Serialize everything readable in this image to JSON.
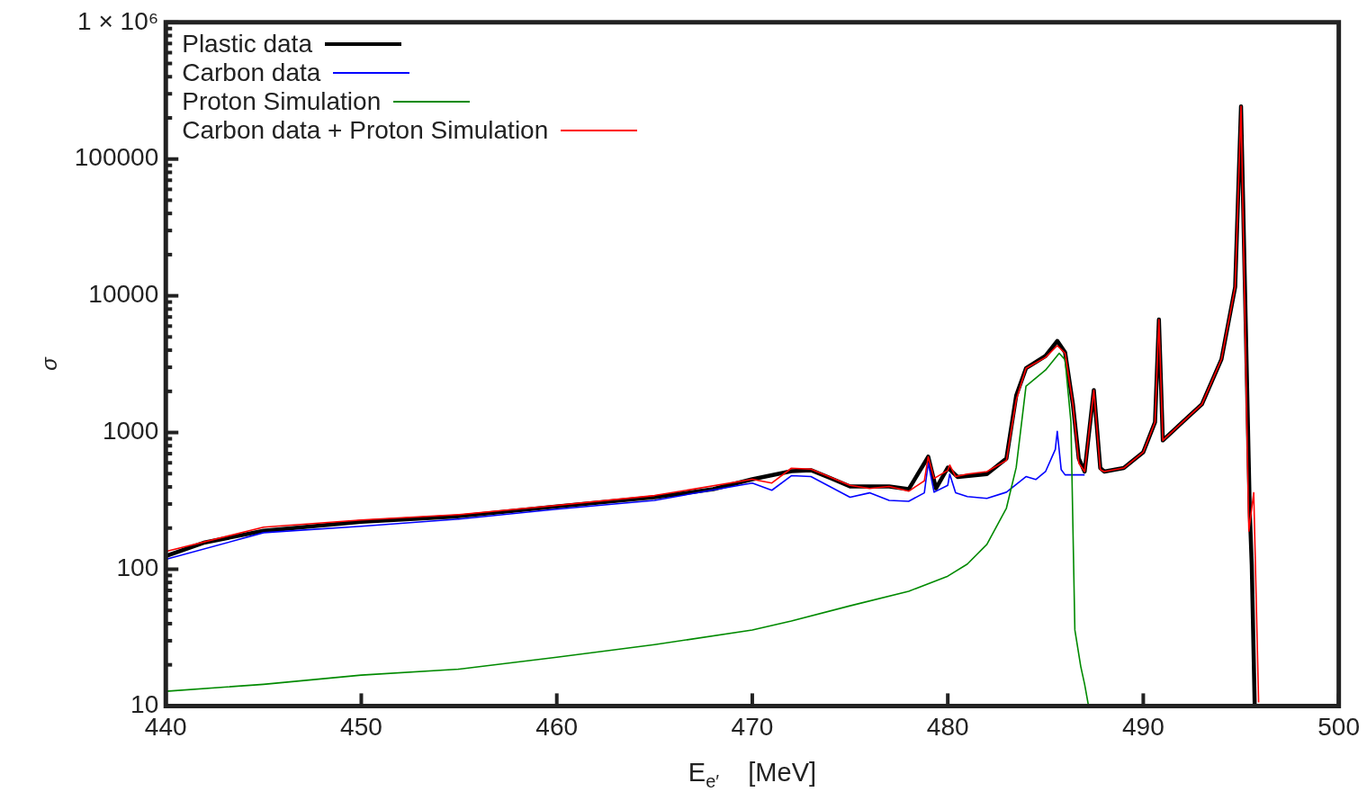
{
  "chart_data": {
    "type": "line",
    "xlabel": "E$_{e′}$    [MeV]",
    "ylabel": "σ",
    "log": "y",
    "grid": false,
    "legend": "top left",
    "marker": "none",
    "xlim": [
      440,
      500
    ],
    "xticks": [
      440,
      450,
      460,
      470,
      480,
      490,
      500
    ],
    "ylim": [
      10,
      1000000
    ],
    "yticks": [
      10,
      {
        "value": 20,
        "label": null
      },
      {
        "value": 30,
        "label": null
      },
      {
        "value": 40,
        "label": null
      },
      {
        "value": 50,
        "label": null
      },
      {
        "value": 60,
        "label": null
      },
      {
        "value": 70,
        "label": null
      },
      {
        "value": 80,
        "label": null
      },
      {
        "value": 90,
        "label": null
      },
      100,
      {
        "value": 200,
        "label": null
      },
      {
        "value": 300,
        "label": null
      },
      {
        "value": 400,
        "label": null
      },
      {
        "value": 500,
        "label": null
      },
      {
        "value": 600,
        "label": null
      },
      {
        "value": 700,
        "label": null
      },
      {
        "value": 800,
        "label": null
      },
      {
        "value": 900,
        "label": null
      },
      1000,
      {
        "value": 2000,
        "label": null
      },
      {
        "value": 3000,
        "label": null
      },
      {
        "value": 4000,
        "label": null
      },
      {
        "value": 5000,
        "label": null
      },
      {
        "value": 6000,
        "label": null
      },
      {
        "value": 7000,
        "label": null
      },
      {
        "value": 8000,
        "label": null
      },
      {
        "value": 9000,
        "label": null
      },
      10000,
      {
        "value": 20000,
        "label": null
      },
      {
        "value": 30000,
        "label": null
      },
      {
        "value": 40000,
        "label": null
      },
      {
        "value": 50000,
        "label": null
      },
      {
        "value": 60000,
        "label": null
      },
      {
        "value": 70000,
        "label": null
      },
      {
        "value": 80000,
        "label": null
      },
      {
        "value": 90000,
        "label": null
      },
      100000,
      {
        "value": 200000,
        "label": null
      },
      {
        "value": 300000,
        "label": null
      },
      {
        "value": 400000,
        "label": null
      },
      {
        "value": 500000,
        "label": null
      },
      {
        "value": 600000,
        "label": null
      },
      {
        "value": 700000,
        "label": null
      },
      {
        "value": 800000,
        "label": null
      },
      {
        "value": 900000,
        "label": null
      },
      {
        "value": 1000000,
        "label": "1 × 10⁶"
      }
    ],
    "series": [
      {
        "name": "Plastic data",
        "color": "#000000",
        "x": [
          440,
          442,
          445,
          450,
          455,
          460,
          465,
          468,
          470,
          472,
          473,
          474,
          475,
          477,
          478,
          479,
          479.4,
          480,
          480.5,
          482,
          483,
          483.5,
          484,
          485,
          485.6,
          486,
          486.4,
          486.7,
          487,
          487.47,
          487.8,
          488,
          489,
          490,
          490.6,
          490.8,
          491,
          492,
          493,
          494,
          494.7,
          495,
          495.45,
          495.55,
          495.7
        ],
        "values": [
          125,
          157,
          191,
          222,
          244,
          288,
          336,
          385,
          455,
          521,
          530,
          464,
          403,
          403,
          385,
          665,
          390,
          554,
          473,
          496,
          646,
          1860,
          2950,
          3630,
          4670,
          3860,
          1610,
          646,
          518,
          2040,
          550,
          518,
          550,
          718,
          1190,
          6710,
          875,
          1190,
          1610,
          3440,
          11600,
          243000,
          259,
          107,
          10
        ]
      },
      {
        "name": "Carbon data",
        "color": "#0000ff",
        "x": [
          440,
          445,
          450,
          455,
          460,
          465,
          470,
          471,
          472,
          473,
          475,
          476,
          477,
          478,
          478.8,
          479,
          479.3,
          480,
          480.1,
          480.4,
          481,
          482,
          483,
          484,
          484.5,
          485,
          485.5,
          485.6,
          485.8,
          486,
          487
        ],
        "values": [
          118,
          185,
          206,
          233,
          275,
          319,
          427,
          378,
          483,
          476,
          336,
          362,
          319,
          314,
          362,
          598,
          366,
          411,
          497,
          362,
          340,
          330,
          366,
          476,
          453,
          518,
          752,
          1020,
          536,
          490,
          490
        ]
      },
      {
        "name": "Proton Simulation",
        "color": "#008a00",
        "x": [
          440,
          445,
          450,
          455,
          460,
          465,
          470,
          472,
          475,
          478,
          480,
          481,
          482,
          483,
          483.5,
          484,
          485,
          485.7,
          486,
          486.3,
          486.5,
          486.8,
          487,
          487.2
        ],
        "values": [
          12.8,
          14.4,
          16.8,
          18.6,
          22.7,
          28.1,
          35.9,
          41.8,
          54,
          69,
          89,
          109,
          152,
          280,
          555,
          2180,
          2860,
          3800,
          3400,
          1190,
          36,
          19.5,
          14.4,
          10
        ]
      },
      {
        "name": "Carbon data + Proton Simulation",
        "color": "#ff0000",
        "x": [
          440,
          445,
          450,
          455,
          460,
          465,
          470,
          471,
          472,
          473,
          475,
          476,
          477,
          478,
          478.8,
          479,
          479.3,
          480,
          480.1,
          480.4,
          481,
          482,
          483,
          483.5,
          484,
          485,
          485.6,
          486,
          486.4,
          486.7,
          487,
          487.47,
          487.8,
          488,
          489,
          490,
          490.6,
          490.8,
          491,
          492,
          493,
          494,
          494.7,
          495,
          495.4,
          495.65,
          495.9
        ],
        "values": [
          135,
          203,
          229,
          251,
          293,
          346,
          455,
          427,
          548,
          540,
          411,
          390,
          403,
          372,
          443,
          665,
          461,
          529,
          578,
          476,
          496,
          518,
          624,
          1730,
          2950,
          3540,
          4320,
          3800,
          1610,
          598,
          518,
          2040,
          536,
          518,
          550,
          718,
          1190,
          6710,
          875,
          1190,
          1610,
          3440,
          11600,
          243000,
          190,
          363,
          10.6
        ]
      }
    ]
  }
}
